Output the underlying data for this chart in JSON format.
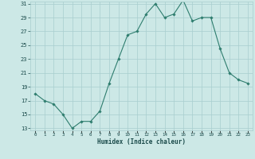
{
  "title": "",
  "xlabel": "Humidex (Indice chaleur)",
  "ylabel": "",
  "x_values": [
    0,
    1,
    2,
    3,
    4,
    5,
    6,
    7,
    8,
    9,
    10,
    11,
    12,
    13,
    14,
    15,
    16,
    17,
    18,
    19,
    20,
    21,
    22,
    23
  ],
  "y_values": [
    18,
    17,
    16.5,
    15,
    13,
    14,
    14,
    15.5,
    19.5,
    23,
    26.5,
    27,
    29.5,
    31,
    29,
    29.5,
    31.5,
    28.5,
    29,
    29,
    24.5,
    21,
    20,
    19.5
  ],
  "y_min": 13,
  "y_max": 31,
  "y_ticks": [
    13,
    15,
    17,
    19,
    21,
    23,
    25,
    27,
    29,
    31
  ],
  "line_color": "#2e7d6e",
  "marker_color": "#2e7d6e",
  "bg_color": "#cce8e6",
  "grid_color": "#a8cece",
  "axis_label_color": "#1a4a4a",
  "tick_label_color": "#1a4a4a",
  "font_family": "monospace"
}
